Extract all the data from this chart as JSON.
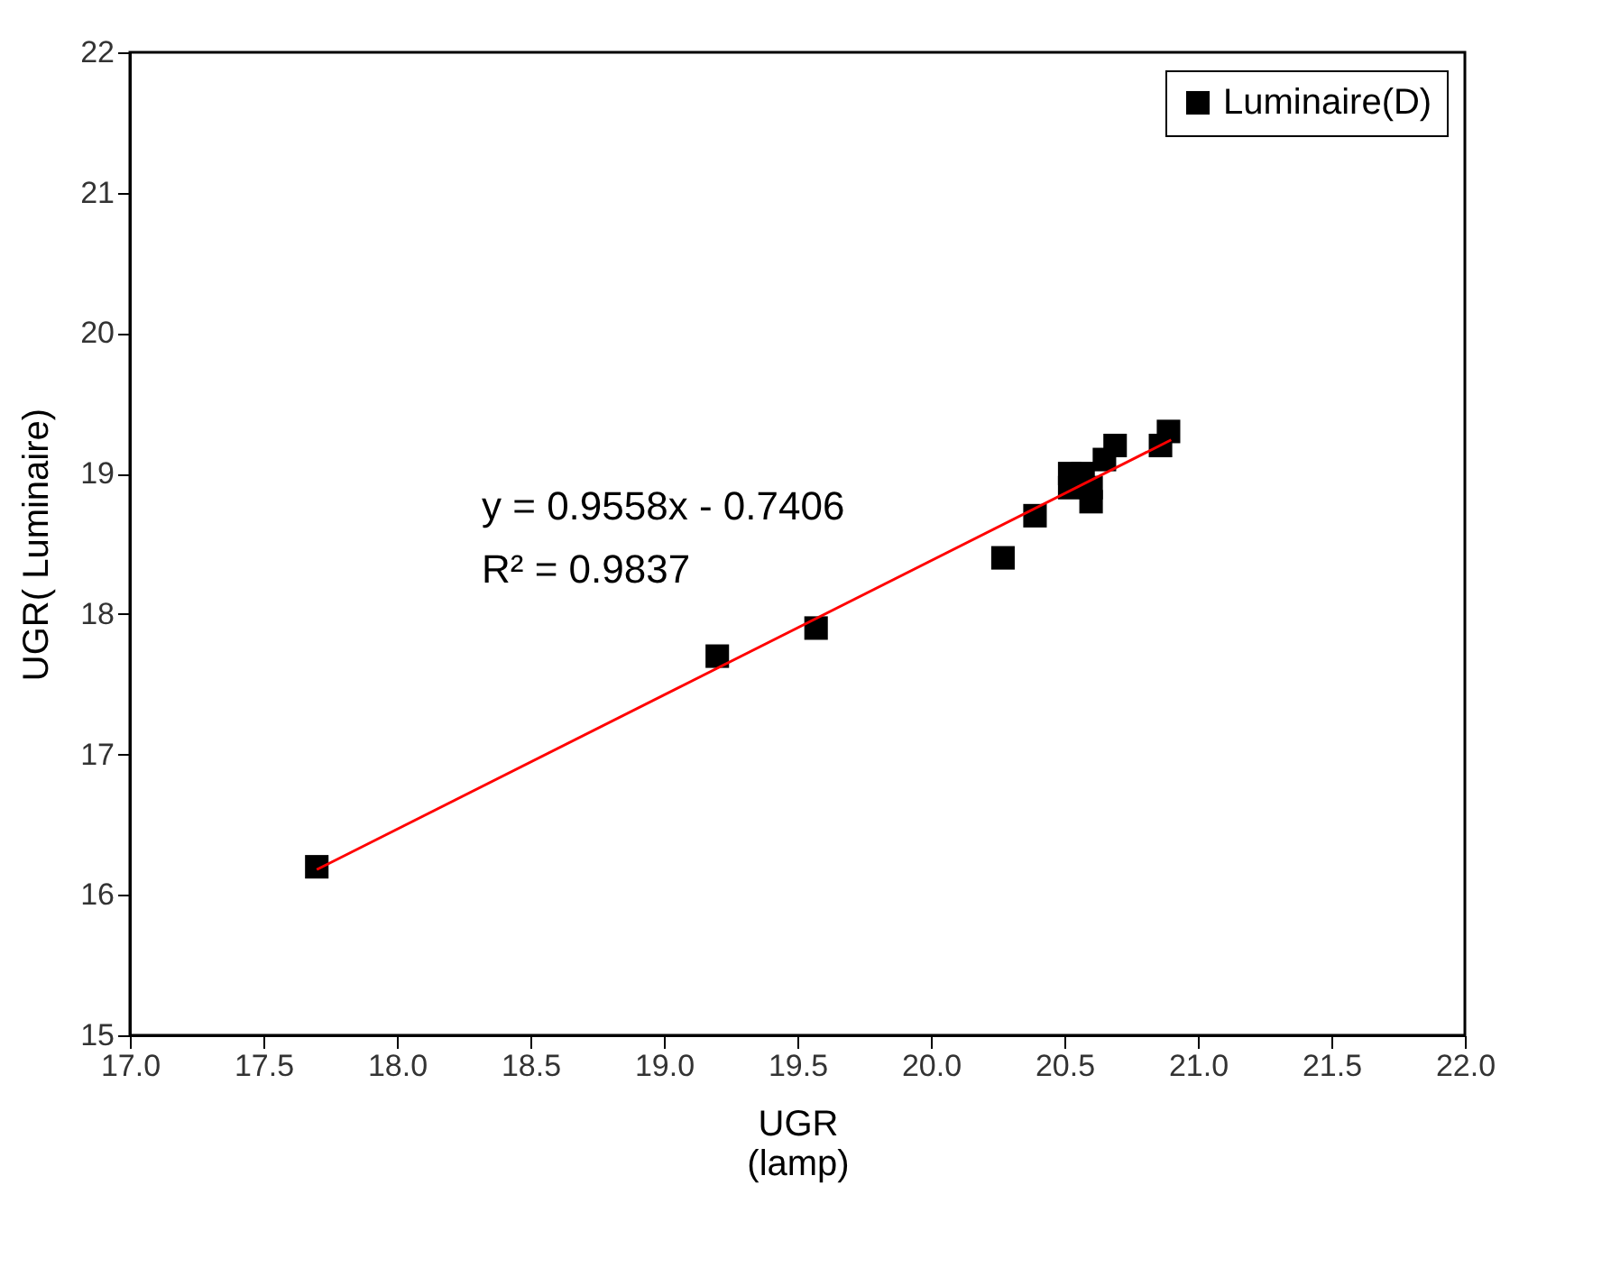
{
  "chart_data": {
    "type": "scatter",
    "xlabel": "UGR\n(lamp)",
    "ylabel": "UGR( Luminaire)",
    "xlim": [
      17.0,
      22.0
    ],
    "ylim": [
      15,
      22
    ],
    "xticks": [
      {
        "value": 17,
        "label": "17.0"
      },
      {
        "value": 17.5,
        "label": "17.5"
      },
      {
        "value": 18,
        "label": "18.0"
      },
      {
        "value": 18.5,
        "label": "18.5"
      },
      {
        "value": 19,
        "label": "19.0"
      },
      {
        "value": 19.5,
        "label": "19.5"
      },
      {
        "value": 20,
        "label": "20.0"
      },
      {
        "value": 20.5,
        "label": "20.5"
      },
      {
        "value": 21,
        "label": "21.0"
      },
      {
        "value": 21.5,
        "label": "21.5"
      },
      {
        "value": 22,
        "label": "22.0"
      }
    ],
    "yticks": [
      15,
      16,
      17,
      18,
      19,
      20,
      21,
      22
    ],
    "grid": false,
    "legend": "top right",
    "marker": "square",
    "annotations": [
      "y = 0.9558x - 0.7406",
      "R² = 0.9837"
    ],
    "series": [
      {
        "name": "Luminaire(D)",
        "type": "scatter",
        "color": "#000000",
        "x": [
          17.7,
          19.2,
          19.57,
          20.27,
          20.39,
          20.52,
          20.52,
          20.57,
          20.6,
          20.6,
          20.65,
          20.69,
          20.86,
          20.89
        ],
        "values": [
          16.2,
          17.7,
          17.9,
          18.4,
          18.7,
          19.0,
          18.9,
          19.0,
          18.8,
          18.9,
          19.1,
          19.2,
          19.2,
          19.3
        ]
      },
      {
        "type": "line",
        "color": "#ff0000",
        "line_style": "solid",
        "marker": "none",
        "x": [
          17.7,
          20.9
        ],
        "values": [
          16.18,
          19.24
        ]
      }
    ]
  }
}
